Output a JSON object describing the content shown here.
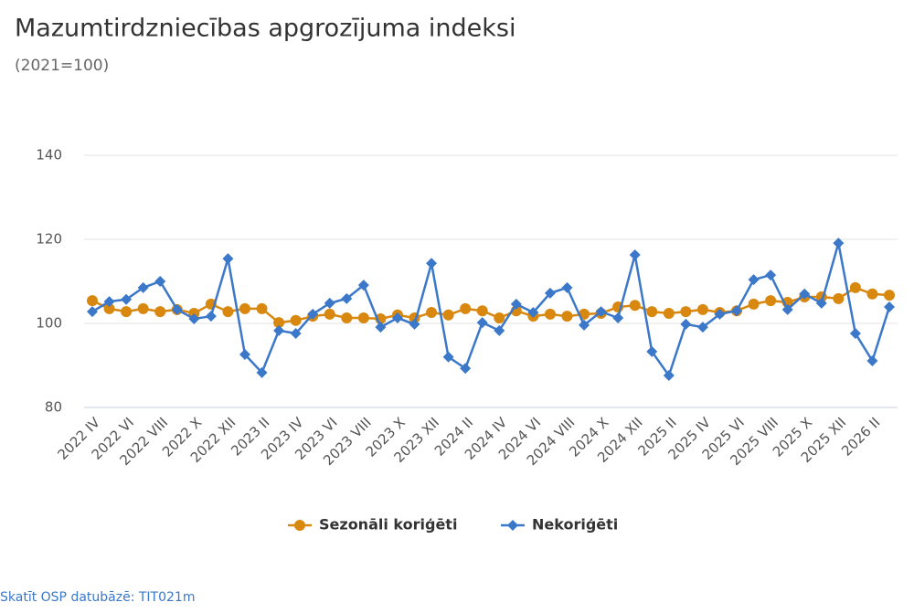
{
  "chart_data": {
    "type": "line",
    "title": "Mazumtirdzniecības apgrozījuma indeksi",
    "subtitle": "(2021=100)",
    "categories": [
      "2022 IV",
      null,
      "2022 VI",
      null,
      "2022 VIII",
      null,
      "2022 X",
      null,
      "2022 XII",
      null,
      "2023 II",
      null,
      "2023 IV",
      null,
      "2023 VI",
      null,
      "2023 VIII",
      null,
      "2023 X",
      null,
      "2023 XII",
      null,
      "2024 II",
      null,
      "2024 IV",
      null,
      "2024 VI",
      null,
      "2024 VIII",
      null,
      "2024 X",
      null,
      "2024 XII",
      null,
      "2025 II",
      null,
      "2025 IV",
      null,
      "2025 VI",
      null,
      "2025 VIII",
      null,
      "2025 X",
      null,
      "2025 XII",
      null,
      "2026 II",
      null
    ],
    "series": [
      {
        "name": "Sezonāli koriģēti",
        "color": "#d9880f",
        "marker": "circle",
        "values": [
          105.4,
          103.5,
          102.8,
          103.5,
          102.8,
          103.3,
          102.4,
          104.6,
          102.8,
          103.5,
          103.5,
          100.2,
          100.7,
          101.7,
          102.2,
          101.3,
          101.3,
          101.1,
          102.0,
          101.3,
          102.6,
          102.0,
          103.5,
          103.0,
          101.3,
          103.0,
          101.7,
          102.2,
          101.7,
          102.2,
          102.4,
          103.9,
          104.3,
          102.8,
          102.4,
          102.8,
          103.3,
          102.6,
          103.0,
          104.6,
          105.4,
          105.0,
          106.3,
          106.3,
          105.9,
          108.5,
          107.0,
          106.7
        ]
      },
      {
        "name": "Nekoriģēti",
        "color": "#3b78c9",
        "marker": "diamond",
        "values": [
          102.8,
          105.2,
          105.7,
          108.5,
          110.0,
          103.3,
          101.1,
          101.7,
          115.4,
          92.6,
          88.3,
          98.3,
          97.6,
          102.2,
          104.8,
          105.9,
          109.1,
          99.1,
          101.3,
          99.8,
          114.3,
          92.0,
          89.3,
          100.2,
          98.3,
          104.6,
          102.6,
          107.2,
          108.5,
          99.6,
          102.8,
          101.3,
          116.3,
          93.3,
          87.6,
          99.8,
          99.1,
          102.2,
          103.0,
          110.4,
          111.5,
          103.3,
          107.0,
          104.8,
          119.1,
          97.6,
          91.1,
          103.9
        ]
      }
    ],
    "ylim": [
      80,
      140
    ],
    "yticks": [
      80,
      100,
      120,
      140
    ],
    "grid": true,
    "legend": "bottom",
    "footer": "Skatīt OSP datubāzē: TIT021m"
  }
}
